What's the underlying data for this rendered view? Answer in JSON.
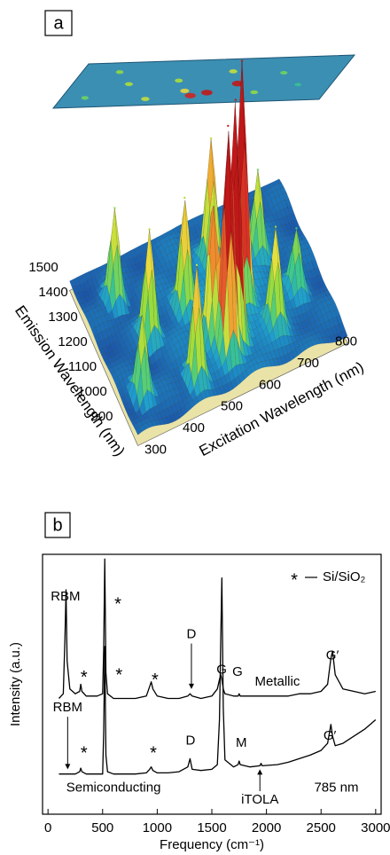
{
  "chart_data": [
    {
      "type": "surface3d",
      "panel_label": "a",
      "x_label": "Excitation Wavelength (nm)",
      "y_label": "Emission Wavelength (nm)",
      "xlim": [
        300,
        850
      ],
      "ylim": [
        850,
        1550
      ],
      "xticks": [
        300,
        400,
        500,
        600,
        700,
        800
      ],
      "yticks": [
        900,
        1000,
        1100,
        1200,
        1300,
        1400,
        1500
      ],
      "peaks": {
        "x": [
          570,
          600,
          650,
          520,
          550,
          700,
          730,
          420,
          350,
          380,
          620,
          780,
          480
        ],
        "y": [
          980,
          1020,
          1150,
          1230,
          1060,
          1000,
          1300,
          1200,
          1000,
          1400,
          1350,
          1100,
          950
        ],
        "z": [
          95,
          100,
          100,
          45,
          60,
          40,
          35,
          45,
          35,
          40,
          50,
          25,
          50
        ]
      }
    },
    {
      "type": "line",
      "panel_label": "b",
      "x_label": "Frequency (cm⁻¹)",
      "y_label": "Intensity (a.u.)",
      "xlim": [
        -50,
        3050
      ],
      "ylim": [
        -1,
        10
      ],
      "xticks": [
        0,
        500,
        1000,
        1500,
        2000,
        2500,
        3000
      ],
      "x": [
        100,
        140,
        155,
        165,
        175,
        200,
        250,
        290,
        300,
        310,
        350,
        450,
        500,
        510,
        520,
        530,
        545,
        600,
        700,
        800,
        900,
        930,
        945,
        960,
        1000,
        1100,
        1200,
        1280,
        1300,
        1320,
        1400,
        1500,
        1550,
        1570,
        1582,
        1592,
        1605,
        1620,
        1700,
        1740,
        1750,
        1760,
        1850,
        1940,
        1950,
        1960,
        2100,
        2200,
        2300,
        2400,
        2500,
        2560,
        2590,
        2605,
        2630,
        2700,
        2800,
        2900,
        3000
      ],
      "series": [
        {
          "name": "Metallic",
          "color": "#000000",
          "label_x": 2100,
          "label_y": 4.6,
          "values": [
            3.9,
            4.1,
            6.5,
            8.5,
            5.5,
            4.3,
            4.1,
            4.2,
            4.5,
            4.2,
            4.0,
            4.0,
            4.1,
            6,
            9.8,
            5,
            4.1,
            3.9,
            3.9,
            3.9,
            4.0,
            4.4,
            4.6,
            4.3,
            4.0,
            3.9,
            3.9,
            4.0,
            4.1,
            4.0,
            3.9,
            4.0,
            4.3,
            4.7,
            4.9,
            4.7,
            4.3,
            4.1,
            4.0,
            4.0,
            4.1,
            4.0,
            4.0,
            4.0,
            4.0,
            4.0,
            4.0,
            4.0,
            4.1,
            4.1,
            4.2,
            4.5,
            5.6,
            5.9,
            4.9,
            4.3,
            4.2,
            4.1,
            4.2
          ]
        },
        {
          "name": "Semiconducting",
          "color": "#000000",
          "label_x": 600,
          "label_y": 0.1,
          "values": [
            0.7,
            0.7,
            0.7,
            0.7,
            0.7,
            0.7,
            0.7,
            0.8,
            0.95,
            0.8,
            0.7,
            0.7,
            0.7,
            2.5,
            6.1,
            1.5,
            0.8,
            0.7,
            0.7,
            0.7,
            0.75,
            0.9,
            1.0,
            0.85,
            0.75,
            0.75,
            0.8,
            1.0,
            1.35,
            0.9,
            0.85,
            0.9,
            1.1,
            3.0,
            6.5,
            9.0,
            3.5,
            1.3,
            1.0,
            1.1,
            1.25,
            1.1,
            1.0,
            1.05,
            1.15,
            1.05,
            1.1,
            1.2,
            1.35,
            1.5,
            1.7,
            2.0,
            2.8,
            2.3,
            1.9,
            2.0,
            2.3,
            2.6,
            3.0
          ]
        }
      ],
      "legend": {
        "symbol": "*",
        "label": "Si/SiO₂"
      },
      "annotations": [
        {
          "text": "RBM",
          "x": 160,
          "y": 8.2
        },
        {
          "text": "*",
          "x": 330,
          "y": 4.9
        },
        {
          "text": "*",
          "x": 640,
          "y": 8.0
        },
        {
          "text": "*",
          "x": 980,
          "y": 4.8
        },
        {
          "text": "D",
          "x": 1313,
          "y": 6.6,
          "arrow_to": 4.3
        },
        {
          "text": "G",
          "x": 1590,
          "y": 5.1
        },
        {
          "text": "G′",
          "x": 2604,
          "y": 5.7
        },
        {
          "text": "RBM",
          "x": 180,
          "y": 3.5,
          "arrow_to": 0.9
        },
        {
          "text": "*",
          "x": 330,
          "y": 1.7
        },
        {
          "text": "*",
          "x": 650,
          "y": 5.0
        },
        {
          "text": "*",
          "x": 965,
          "y": 1.7
        },
        {
          "text": "D",
          "x": 1305,
          "y": 2.1
        },
        {
          "text": "G",
          "x": 1735,
          "y": 5.0
        },
        {
          "text": "M",
          "x": 1770,
          "y": 2.0
        },
        {
          "text": "G′",
          "x": 2580,
          "y": 2.3
        },
        {
          "text": "iTOLA",
          "x": 1940,
          "y": -0.4,
          "arrow_to": 0.9
        },
        {
          "text": "785 nm",
          "x": 2640,
          "y": 0.1
        }
      ]
    }
  ]
}
